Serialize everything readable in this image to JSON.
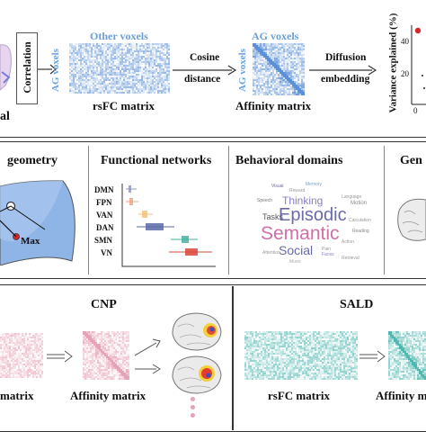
{
  "top": {
    "correlation_label": "Correlation",
    "other_voxels_label": "Other voxels",
    "ag_voxels_label_1": "AG voxels",
    "rsfc_matrix_label": "rsFC matrix",
    "cosine_label_1": "Cosine",
    "cosine_label_2": "distance",
    "ag_voxels_label_2": "AG voxels",
    "ag_voxels_label_3": "AG voxels",
    "affinity_matrix_label": "Affinity matrix",
    "diffusion_label_1": "Diffusion",
    "diffusion_label_2": "embedding",
    "variance_axis_label": "Variance explained (%)",
    "variance_tick_40": "40",
    "variance_tick_20": "20",
    "variance_tick_0": "0",
    "left_cut_label": "al"
  },
  "middle": {
    "geometry_title": "geometry",
    "max_label": "Max",
    "networks_title": "Functional networks",
    "network_names": [
      "DMN",
      "FPN",
      "VAN",
      "DAN",
      "SMN",
      "VN"
    ],
    "behavioral_title": "Behavioral domains",
    "genes_title": "Gen",
    "wordcloud": {
      "episodic": "Episodic",
      "semantic": "Semantic",
      "social": "Social",
      "thinking": "Thinking",
      "tasks": "Tasks",
      "motion": "Motion",
      "small": [
        "Visual",
        "Memory",
        "Reward",
        "Speech",
        "Language",
        "Reading",
        "Pain",
        "Faces",
        "Music",
        "Action",
        "Attention",
        "Calculation",
        "Retrieval"
      ]
    }
  },
  "bottom": {
    "cnp_title": "CNP",
    "sald_title": "SALD",
    "cnp_matrix_label": "matrix",
    "cnp_affinity_label": "Affinity matrix",
    "sald_rsfc_label": "rsFC matrix",
    "sald_affinity_label": "Affinity matri"
  },
  "colors": {
    "blue_matrix": "#5b8fd6",
    "pink_matrix": "#e6a2b6",
    "teal_matrix": "#4fb7b0",
    "dmn": "#8f97c9",
    "fpn": "#f0a487",
    "van": "#f4c27a",
    "dan": "#5b6aa8",
    "smn": "#4aaea2",
    "vn": "#d9473b"
  }
}
